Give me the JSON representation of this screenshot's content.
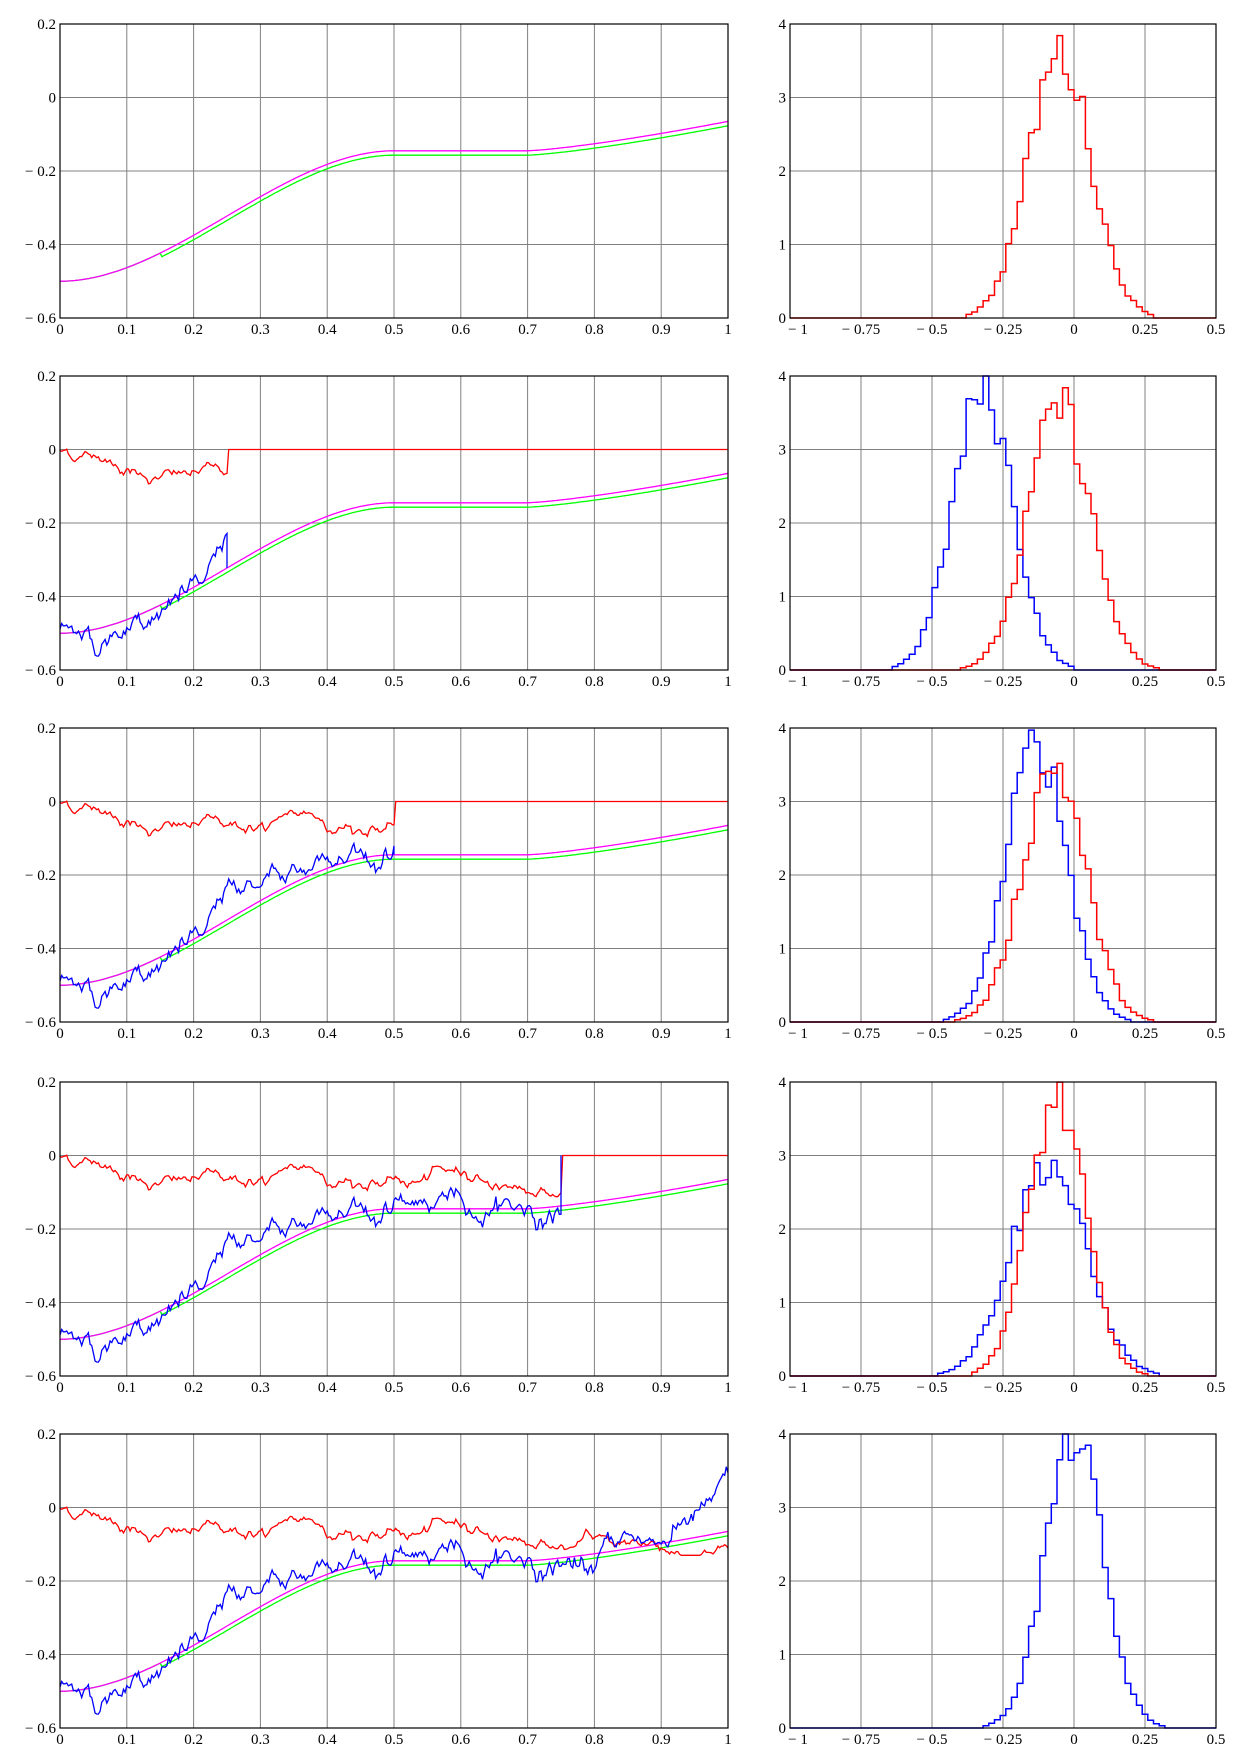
{
  "colors": {
    "red": "#ff0000",
    "blue": "#0000ff",
    "green": "#00ff00",
    "magenta": "#ff00ff",
    "grid": "#808080"
  },
  "chart_data": [
    {
      "type": "line",
      "panel": "left-1",
      "x_ticks": [
        "0",
        "0.1",
        "0.2",
        "0.3",
        "0.4",
        "0.5",
        "0.6",
        "0.7",
        "0.8",
        "0.9",
        "1"
      ],
      "y_ticks": [
        "0.2",
        "0",
        "− 0.2",
        "− 0.4",
        "− 0.6"
      ],
      "xlim": [
        0,
        1
      ],
      "ylim": [
        -0.6,
        0.2
      ],
      "grid": true,
      "stop": null,
      "series": [
        {
          "color": "green",
          "kind": "smooth"
        },
        {
          "color": "magenta",
          "kind": "smooth"
        }
      ]
    },
    {
      "type": "bar",
      "panel": "right-1",
      "x_ticks": [
        "− 1",
        "− 0.75",
        "− 0.5",
        "− 0.25",
        "0",
        "0.25",
        "0.5"
      ],
      "y_ticks": [
        "4",
        "3",
        "2",
        "1",
        "0"
      ],
      "xlim": [
        -1,
        0.5
      ],
      "ylim": [
        0,
        4
      ],
      "grid": true,
      "series": [
        {
          "color": "red",
          "center": -0.05,
          "sigma": 0.11,
          "peak": 3.6
        }
      ]
    },
    {
      "type": "line",
      "panel": "left-2",
      "x_ticks": [
        "0",
        "0.1",
        "0.2",
        "0.3",
        "0.4",
        "0.5",
        "0.6",
        "0.7",
        "0.8",
        "0.9",
        "1"
      ],
      "y_ticks": [
        "0.2",
        "0",
        "− 0.2",
        "− 0.4",
        "− 0.6"
      ],
      "xlim": [
        0,
        1
      ],
      "ylim": [
        -0.6,
        0.2
      ],
      "grid": true,
      "stop": 0.25,
      "series": [
        {
          "color": "green",
          "kind": "smooth"
        },
        {
          "color": "magenta",
          "kind": "smooth"
        },
        {
          "color": "red",
          "kind": "noisy"
        },
        {
          "color": "blue",
          "kind": "noisy"
        }
      ]
    },
    {
      "type": "bar",
      "panel": "right-2",
      "x_ticks": [
        "− 1",
        "− 0.75",
        "− 0.5",
        "− 0.25",
        "0",
        "0.25",
        "0.5"
      ],
      "y_ticks": [
        "4",
        "3",
        "2",
        "1",
        "0"
      ],
      "xlim": [
        -1,
        0.5
      ],
      "ylim": [
        0,
        4
      ],
      "grid": true,
      "series": [
        {
          "color": "blue",
          "center": -0.32,
          "sigma": 0.105,
          "peak": 3.8
        },
        {
          "color": "red",
          "center": -0.05,
          "sigma": 0.11,
          "peak": 3.6
        }
      ]
    },
    {
      "type": "line",
      "panel": "left-3",
      "x_ticks": [
        "0",
        "0.1",
        "0.2",
        "0.3",
        "0.4",
        "0.5",
        "0.6",
        "0.7",
        "0.8",
        "0.9",
        "1"
      ],
      "y_ticks": [
        "0.2",
        "0",
        "− 0.2",
        "− 0.4",
        "− 0.6"
      ],
      "xlim": [
        0,
        1
      ],
      "ylim": [
        -0.6,
        0.2
      ],
      "grid": true,
      "stop": 0.5,
      "series": [
        {
          "color": "green",
          "kind": "smooth"
        },
        {
          "color": "magenta",
          "kind": "smooth"
        },
        {
          "color": "red",
          "kind": "noisy"
        },
        {
          "color": "blue",
          "kind": "noisy"
        }
      ]
    },
    {
      "type": "bar",
      "panel": "right-3",
      "x_ticks": [
        "− 1",
        "− 0.75",
        "− 0.5",
        "− 0.25",
        "0",
        "0.25",
        "0.5"
      ],
      "y_ticks": [
        "4",
        "3",
        "2",
        "1",
        "0"
      ],
      "xlim": [
        -1,
        0.5
      ],
      "ylim": [
        0,
        4
      ],
      "grid": true,
      "series": [
        {
          "color": "blue",
          "center": -0.13,
          "sigma": 0.105,
          "peak": 3.8
        },
        {
          "color": "red",
          "center": -0.07,
          "sigma": 0.11,
          "peak": 3.5
        }
      ]
    },
    {
      "type": "line",
      "panel": "left-4",
      "x_ticks": [
        "0",
        "0.1",
        "0.2",
        "0.3",
        "0.4",
        "0.5",
        "0.6",
        "0.7",
        "0.8",
        "0.9",
        "1"
      ],
      "y_ticks": [
        "0.2",
        "0",
        "− 0.2",
        "− 0.4",
        "− 0.6"
      ],
      "xlim": [
        0,
        1
      ],
      "ylim": [
        -0.6,
        0.2
      ],
      "grid": true,
      "stop": 0.75,
      "series": [
        {
          "color": "green",
          "kind": "smooth"
        },
        {
          "color": "magenta",
          "kind": "smooth"
        },
        {
          "color": "red",
          "kind": "noisy"
        },
        {
          "color": "blue",
          "kind": "noisy"
        }
      ]
    },
    {
      "type": "bar",
      "panel": "right-4",
      "x_ticks": [
        "− 1",
        "− 0.75",
        "− 0.5",
        "− 0.25",
        "0",
        "0.25",
        "0.5"
      ],
      "y_ticks": [
        "4",
        "3",
        "2",
        "1",
        "0"
      ],
      "xlim": [
        -1,
        0.5
      ],
      "ylim": [
        0,
        4
      ],
      "grid": true,
      "series": [
        {
          "color": "blue",
          "center": -0.09,
          "sigma": 0.13,
          "peak": 2.9
        },
        {
          "color": "red",
          "center": -0.06,
          "sigma": 0.1,
          "peak": 3.75
        }
      ]
    },
    {
      "type": "line",
      "panel": "left-5",
      "x_ticks": [
        "0",
        "0.1",
        "0.2",
        "0.3",
        "0.4",
        "0.5",
        "0.6",
        "0.7",
        "0.8",
        "0.9",
        "1"
      ],
      "y_ticks": [
        "0.2",
        "0",
        "− 0.2",
        "− 0.4",
        "− 0.6"
      ],
      "xlim": [
        0,
        1
      ],
      "ylim": [
        -0.6,
        0.2
      ],
      "grid": true,
      "stop": 1.0,
      "series": [
        {
          "color": "green",
          "kind": "smooth"
        },
        {
          "color": "magenta",
          "kind": "smooth"
        },
        {
          "color": "red",
          "kind": "noisy"
        },
        {
          "color": "blue",
          "kind": "noisy"
        }
      ]
    },
    {
      "type": "bar",
      "panel": "right-5",
      "x_ticks": [
        "− 1",
        "− 0.75",
        "− 0.5",
        "− 0.25",
        "0",
        "0.25",
        "0.5"
      ],
      "y_ticks": [
        "4",
        "3",
        "2",
        "1",
        "0"
      ],
      "xlim": [
        -1,
        0.5
      ],
      "ylim": [
        0,
        4
      ],
      "grid": true,
      "series": [
        {
          "color": "blue",
          "center": 0.0,
          "sigma": 0.1,
          "peak": 4.0
        }
      ]
    }
  ]
}
